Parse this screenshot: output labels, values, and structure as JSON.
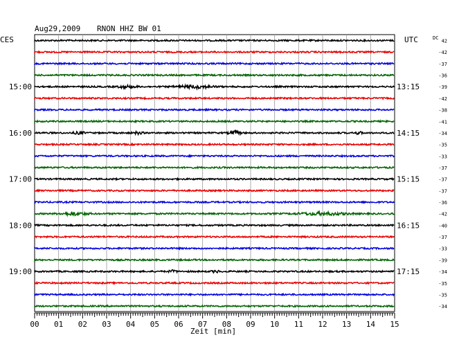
{
  "header": {
    "date": "Aug29,2009",
    "station": "RNON HHZ BW 01",
    "left_tz": "CES",
    "right_tz": "UTC",
    "dc_label": "DC"
  },
  "chart_data": {
    "type": "line",
    "title": "Aug29,2009   RNON HHZ BW 01",
    "xlabel": "Zeit [min]",
    "xlim": [
      0,
      15
    ],
    "x_ticks": [
      "00",
      "01",
      "02",
      "03",
      "04",
      "05",
      "06",
      "07",
      "08",
      "09",
      "10",
      "11",
      "12",
      "13",
      "14",
      "15"
    ],
    "grid": true,
    "trace_colors": [
      "#000000",
      "#e80000",
      "#0000e0",
      "#006400"
    ],
    "left_hour_labels": [
      {
        "row": 4,
        "text": "15:00"
      },
      {
        "row": 8,
        "text": "16:00"
      },
      {
        "row": 12,
        "text": "17:00"
      },
      {
        "row": 16,
        "text": "18:00"
      },
      {
        "row": 20,
        "text": "19:00"
      }
    ],
    "right_hour_labels": [
      {
        "row": 4,
        "text": "13:15"
      },
      {
        "row": 8,
        "text": "14:15"
      },
      {
        "row": 12,
        "text": "15:15"
      },
      {
        "row": 16,
        "text": "16:15"
      },
      {
        "row": 20,
        "text": "17:15"
      }
    ],
    "dc_values": [
      "42",
      "-42",
      "-37",
      "-36",
      "-39",
      "-42",
      "-38",
      "-41",
      "-34",
      "-35",
      "-33",
      "-37",
      "-37",
      "-37",
      "-36",
      "-42",
      "-40",
      "-37",
      "-33",
      "-39",
      "-34",
      "-35",
      "-35",
      "-34"
    ],
    "events": [
      {
        "row": 4,
        "start_min": 3.3,
        "end_min": 4.4,
        "amp": 1.8
      },
      {
        "row": 4,
        "start_min": 5.6,
        "end_min": 7.8,
        "amp": 2.0
      },
      {
        "row": 8,
        "start_min": 1.5,
        "end_min": 2.2,
        "amp": 1.5
      },
      {
        "row": 8,
        "start_min": 4.0,
        "end_min": 4.6,
        "amp": 1.5
      },
      {
        "row": 8,
        "start_min": 8.0,
        "end_min": 8.7,
        "amp": 2.6
      },
      {
        "row": 8,
        "start_min": 13.2,
        "end_min": 13.8,
        "amp": 1.4
      },
      {
        "row": 15,
        "start_min": 0.8,
        "end_min": 2.5,
        "amp": 2.0
      },
      {
        "row": 15,
        "start_min": 10.5,
        "end_min": 13.5,
        "amp": 2.0
      },
      {
        "row": 20,
        "start_min": 5.5,
        "end_min": 6.0,
        "amp": 1.5
      },
      {
        "row": 20,
        "start_min": 7.3,
        "end_min": 7.8,
        "amp": 1.5
      }
    ]
  }
}
